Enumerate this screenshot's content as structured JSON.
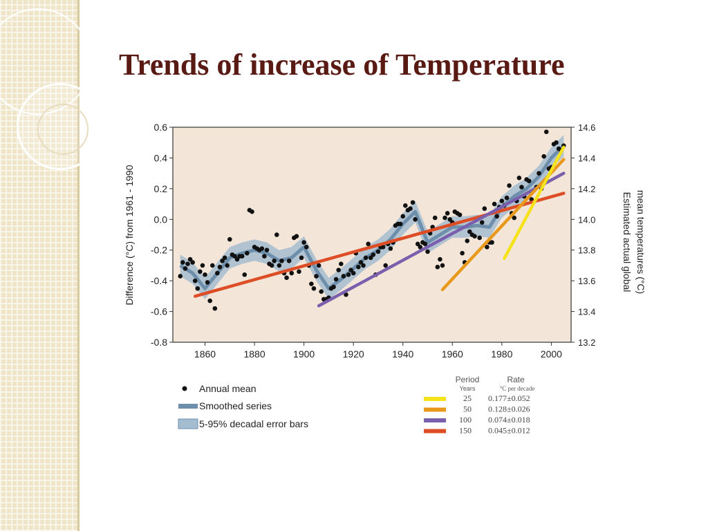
{
  "slide": {
    "title": "Trends of increase of Temperature"
  },
  "colors": {
    "title": "#5a1a14",
    "plot_background": "#f3e6d8",
    "points": "#111111",
    "smoothed_series": "#6e8fab",
    "error_band": "#a4bcd0",
    "trend_25": "#f5e21a",
    "trend_50": "#e8991c",
    "trend_100": "#7a5fad",
    "trend_150": "#dd4e26"
  },
  "chart_data": {
    "type": "scatter",
    "title": "",
    "ylabel": "Difference (°C) from 1961 - 1990",
    "y2label": "Estimated actual global mean temperatures (°C)",
    "xlim": [
      1847,
      2008
    ],
    "ylim": [
      -0.8,
      0.6
    ],
    "y2lim": [
      13.2,
      14.6
    ],
    "grid": false,
    "x_ticks": [
      "1860",
      "1880",
      "1900",
      "1920",
      "1940",
      "1960",
      "1980",
      "2000"
    ],
    "y_ticks": [
      "0.6",
      "0.4",
      "0.2",
      "0.0",
      "-0.2",
      "-0.4",
      "-0.6",
      "-0.8"
    ],
    "y2_ticks": [
      "14.6",
      "14.4",
      "14.2",
      "14.0",
      "13.8",
      "13.6",
      "13.4",
      "13.2"
    ],
    "annual_mean": {
      "label": "Annual mean",
      "x": [
        1850,
        1851,
        1852,
        1853,
        1854,
        1855,
        1856,
        1857,
        1858,
        1859,
        1860,
        1861,
        1862,
        1863,
        1864,
        1865,
        1866,
        1867,
        1868,
        1869,
        1870,
        1871,
        1872,
        1873,
        1874,
        1875,
        1876,
        1877,
        1878,
        1879,
        1880,
        1881,
        1882,
        1883,
        1884,
        1885,
        1886,
        1887,
        1888,
        1889,
        1890,
        1891,
        1892,
        1893,
        1894,
        1895,
        1896,
        1897,
        1898,
        1899,
        1900,
        1901,
        1902,
        1903,
        1904,
        1905,
        1906,
        1907,
        1908,
        1909,
        1910,
        1911,
        1912,
        1913,
        1914,
        1915,
        1916,
        1917,
        1918,
        1919,
        1920,
        1921,
        1922,
        1923,
        1924,
        1925,
        1926,
        1927,
        1928,
        1929,
        1930,
        1931,
        1932,
        1933,
        1934,
        1935,
        1936,
        1937,
        1938,
        1939,
        1940,
        1941,
        1942,
        1943,
        1944,
        1945,
        1946,
        1947,
        1948,
        1949,
        1950,
        1951,
        1952,
        1953,
        1954,
        1955,
        1956,
        1957,
        1958,
        1959,
        1960,
        1961,
        1962,
        1963,
        1964,
        1965,
        1966,
        1967,
        1968,
        1969,
        1970,
        1971,
        1972,
        1973,
        1974,
        1975,
        1976,
        1977,
        1978,
        1979,
        1980,
        1981,
        1982,
        1983,
        1984,
        1985,
        1986,
        1987,
        1988,
        1989,
        1990,
        1991,
        1992,
        1993,
        1994,
        1995,
        1996,
        1997,
        1998,
        1999,
        2000,
        2001,
        2002,
        2003,
        2004,
        2005
      ],
      "y": [
        -0.37,
        -0.28,
        -0.32,
        -0.29,
        -0.26,
        -0.28,
        -0.4,
        -0.45,
        -0.34,
        -0.3,
        -0.36,
        -0.41,
        -0.53,
        -0.3,
        -0.58,
        -0.35,
        -0.31,
        -0.27,
        -0.25,
        -0.3,
        -0.13,
        -0.23,
        -0.24,
        -0.26,
        -0.24,
        -0.24,
        -0.36,
        -0.22,
        0.06,
        0.05,
        -0.18,
        -0.19,
        -0.2,
        -0.19,
        -0.24,
        -0.2,
        -0.29,
        -0.3,
        -0.27,
        -0.1,
        -0.3,
        -0.27,
        -0.35,
        -0.38,
        -0.27,
        -0.35,
        -0.12,
        -0.11,
        -0.34,
        -0.25,
        -0.15,
        -0.18,
        -0.3,
        -0.42,
        -0.45,
        -0.37,
        -0.3,
        -0.47,
        -0.52,
        -0.52,
        -0.51,
        -0.45,
        -0.44,
        -0.39,
        -0.33,
        -0.29,
        -0.37,
        -0.49,
        -0.36,
        -0.33,
        -0.35,
        -0.22,
        -0.31,
        -0.28,
        -0.3,
        -0.25,
        -0.16,
        -0.25,
        -0.23,
        -0.36,
        -0.21,
        -0.18,
        -0.18,
        -0.3,
        -0.16,
        -0.19,
        -0.15,
        -0.04,
        -0.03,
        -0.03,
        0.02,
        0.09,
        0.06,
        0.07,
        0.11,
        0.0,
        -0.16,
        -0.18,
        -0.15,
        -0.16,
        -0.21,
        -0.09,
        -0.05,
        0.01,
        -0.31,
        -0.26,
        -0.3,
        0.01,
        0.04,
        0.0,
        -0.02,
        0.05,
        0.04,
        0.03,
        -0.22,
        -0.28,
        -0.14,
        -0.08,
        -0.1,
        -0.11,
        0.0,
        -0.12,
        -0.02,
        0.07,
        -0.18,
        -0.15,
        -0.15,
        0.1,
        0.02,
        0.08,
        0.12,
        0.09,
        0.14,
        0.22,
        0.04,
        0.01,
        0.12,
        0.27,
        0.21,
        0.15,
        0.26,
        0.25,
        0.13,
        0.19,
        0.21,
        0.3,
        0.2,
        0.41,
        0.57,
        0.33,
        0.34,
        0.49,
        0.5,
        0.46,
        0.45,
        0.48
      ]
    },
    "smoothed_series": {
      "label": "Smoothed series",
      "x": [
        1850,
        1855,
        1860,
        1865,
        1870,
        1875,
        1880,
        1885,
        1890,
        1895,
        1900,
        1905,
        1910,
        1915,
        1920,
        1925,
        1930,
        1935,
        1940,
        1945,
        1950,
        1955,
        1960,
        1965,
        1970,
        1975,
        1980,
        1985,
        1990,
        1995,
        2000,
        2005
      ],
      "y": [
        -0.3,
        -0.35,
        -0.45,
        -0.35,
        -0.25,
        -0.22,
        -0.2,
        -0.22,
        -0.27,
        -0.25,
        -0.18,
        -0.33,
        -0.45,
        -0.39,
        -0.32,
        -0.25,
        -0.2,
        -0.13,
        -0.03,
        0.05,
        -0.15,
        -0.1,
        -0.05,
        -0.05,
        -0.04,
        -0.05,
        0.08,
        0.15,
        0.2,
        0.28,
        0.4,
        0.48
      ]
    },
    "error_bars": {
      "label": "5-95% decadal error bars",
      "half_width": 0.07
    },
    "trend_lines": {
      "header_period": "Period",
      "header_years": "Years",
      "header_rate": "Rate",
      "header_unit": "°C per decade",
      "rows": [
        {
          "period": "25",
          "rate": "0.177±0.052",
          "start_year": 1981,
          "end_year": 2005,
          "rate_value": 0.177
        },
        {
          "period": "50",
          "rate": "0.128±0.026",
          "start_year": 1956,
          "end_year": 2005,
          "rate_value": 0.128
        },
        {
          "period": "100",
          "rate": "0.074±0.018",
          "start_year": 1906,
          "end_year": 2005,
          "rate_value": 0.074
        },
        {
          "period": "150",
          "rate": "0.045±0.012",
          "start_year": 1856,
          "end_year": 2005,
          "rate_value": 0.045
        }
      ]
    }
  }
}
